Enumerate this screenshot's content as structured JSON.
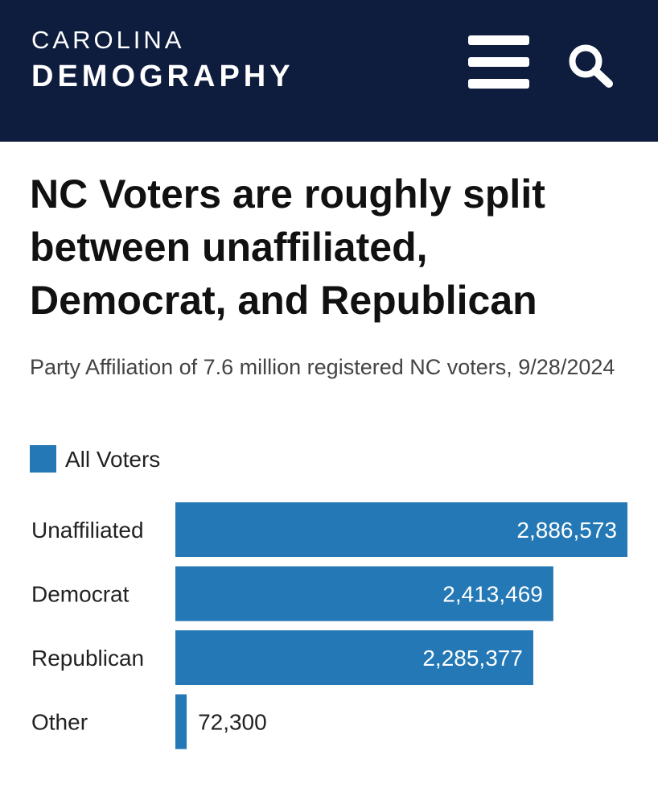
{
  "header": {
    "logo_line1": "CAROLINA",
    "logo_line2": "DEMOGRAPHY",
    "menu_icon": "hamburger-menu-icon",
    "search_icon": "search-icon",
    "background_color": "#0e1c3d"
  },
  "chart_data": {
    "type": "bar",
    "orientation": "horizontal",
    "title": "NC Voters are roughly split between unaffiliated, Democrat, and Republican",
    "subtitle": "Party Affiliation of 7.6 million registered NC voters, 9/28/2024",
    "categories": [
      "Unaffiliated",
      "Democrat",
      "Republican",
      "Other"
    ],
    "series": [
      {
        "name": "All Voters",
        "values": [
          2886573,
          2413469,
          2285377,
          72300
        ],
        "labels": [
          "2,886,573",
          "2,413,469",
          "2,285,377",
          "72,300"
        ],
        "color": "#2378b5"
      }
    ],
    "xlim": [
      0,
      2886573
    ],
    "grid": false,
    "legend": "top-left"
  }
}
